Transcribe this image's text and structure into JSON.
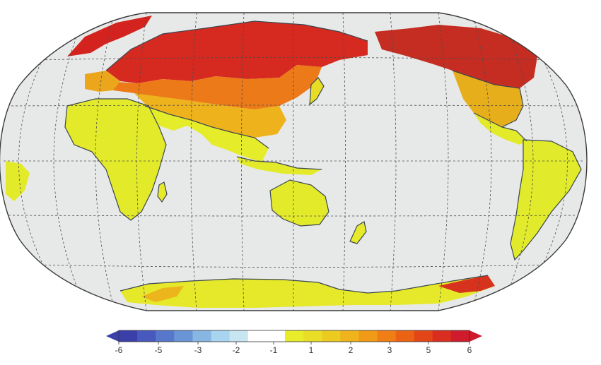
{
  "map": {
    "projection": "robinson",
    "center_longitude": 120,
    "graticule": {
      "lat_step_deg": 30,
      "lon_step_deg": 30,
      "style": "dashed"
    },
    "colors": {
      "ocean": "#e7e9e8",
      "frame": "#3a3a3a",
      "coast": "#3b4650",
      "graticule": "#4b4b4b"
    }
  },
  "colorbar": {
    "ticks": [
      "-6",
      "-5",
      "-3",
      "-2",
      "-1",
      "1",
      "2",
      "3",
      "5",
      "6"
    ],
    "colors": [
      "#3b3faa",
      "#4759bc",
      "#5677ca",
      "#6995d6",
      "#87b6e3",
      "#a9d4ef",
      "#c8e6f2",
      "#ffffff",
      "#ffffff",
      "#e8ec2a",
      "#e9dd25",
      "#eccb20",
      "#efb41c",
      "#f19a17",
      "#ef7e14",
      "#eb6214",
      "#e24616",
      "#d92d1f",
      "#cf1b2c"
    ],
    "extend": "both"
  },
  "regions": [
    {
      "name": "arctic-europe",
      "level": 5
    },
    {
      "name": "siberia",
      "level": 5
    },
    {
      "name": "central-asia",
      "level": 3
    },
    {
      "name": "north-america-north",
      "level": 5
    },
    {
      "name": "north-america-south",
      "level": 2
    },
    {
      "name": "south-america",
      "level": 1
    },
    {
      "name": "africa",
      "level": 1
    },
    {
      "name": "australia",
      "level": 1
    },
    {
      "name": "antarctica",
      "level": 1
    }
  ]
}
